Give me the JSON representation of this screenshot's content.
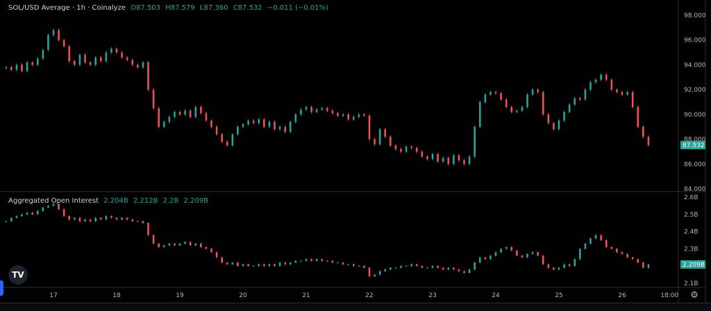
{
  "colors": {
    "up": "#26a69a",
    "down": "#ef5350",
    "background": "#000000",
    "grid": "#2a2e39",
    "text": "#d1d4dc"
  },
  "price_legend": {
    "title": "SOL/USD Average · 1h · Coinalyze",
    "o": "O87.503",
    "h": "H87.579",
    "l": "L87.360",
    "c": "C87.532",
    "change": "−0.011 (−0.01%)"
  },
  "oi_legend": {
    "title": "Aggregated Open Interest",
    "v1": "2.204B",
    "v2": "2.212B",
    "v3": "2.2B",
    "v4": "2.209B"
  },
  "logo_text": "TV",
  "icons": {
    "settings": "gear-icon",
    "logo": "tradingview-logo"
  },
  "chart_data": [
    {
      "type": "candlestick",
      "title": "SOL/USD Average · 1h · Coinalyze",
      "interval": "2h samples",
      "first_sample": "16 06:00",
      "ylim": [
        84,
        98
      ],
      "y_ticks": [
        "98.000",
        "96.000",
        "94.000",
        "92.000",
        "90.000",
        "88.000",
        "86.000",
        "84.000"
      ],
      "last_value_label": "87.532",
      "closes": [
        93.8,
        93.6,
        94.0,
        93.5,
        94.2,
        94.0,
        94.5,
        95.2,
        96.4,
        96.8,
        96.0,
        95.5,
        94.3,
        94.0,
        94.8,
        94.2,
        94.0,
        94.6,
        94.3,
        95.0,
        95.3,
        95.0,
        94.6,
        94.4,
        94.0,
        93.8,
        94.2,
        92.0,
        90.5,
        89.0,
        89.4,
        89.8,
        90.2,
        90.0,
        90.3,
        89.8,
        90.6,
        90.1,
        89.5,
        89.0,
        88.4,
        87.8,
        87.5,
        88.4,
        89.0,
        89.2,
        89.5,
        89.3,
        89.6,
        89.0,
        89.4,
        88.8,
        89.0,
        88.6,
        89.4,
        90.0,
        90.4,
        90.6,
        90.2,
        90.4,
        90.5,
        90.3,
        90.1,
        89.9,
        90.0,
        89.6,
        89.8,
        90.0,
        89.9,
        88.0,
        87.6,
        88.8,
        88.2,
        87.5,
        87.2,
        87.0,
        87.4,
        87.3,
        87.0,
        86.6,
        86.4,
        86.8,
        86.2,
        86.5,
        86.0,
        86.7,
        86.3,
        86.0,
        86.6,
        89.0,
        91.0,
        91.6,
        91.8,
        91.7,
        91.2,
        90.6,
        90.2,
        90.3,
        90.6,
        91.6,
        92.0,
        91.8,
        90.0,
        89.3,
        88.8,
        89.5,
        90.2,
        90.8,
        91.3,
        91.2,
        92.0,
        92.6,
        92.8,
        93.2,
        92.8,
        92.0,
        91.8,
        91.6,
        91.8,
        90.6,
        89.0,
        88.2,
        87.532
      ]
    },
    {
      "type": "candlestick",
      "title": "Aggregated Open Interest",
      "unit": "B",
      "ylim": [
        2.1,
        2.6
      ],
      "y_ticks": [
        "2.6B",
        "2.5B",
        "2.4B",
        "2.3B",
        "2.1B"
      ],
      "last_value_label": "2.209B",
      "closes": [
        2.46,
        2.48,
        2.49,
        2.5,
        2.51,
        2.5,
        2.52,
        2.54,
        2.55,
        2.56,
        2.53,
        2.49,
        2.47,
        2.48,
        2.46,
        2.47,
        2.46,
        2.48,
        2.47,
        2.49,
        2.48,
        2.47,
        2.48,
        2.47,
        2.46,
        2.46,
        2.45,
        2.38,
        2.33,
        2.31,
        2.32,
        2.33,
        2.32,
        2.33,
        2.34,
        2.32,
        2.33,
        2.31,
        2.3,
        2.28,
        2.25,
        2.22,
        2.21,
        2.22,
        2.2,
        2.21,
        2.2,
        2.2,
        2.21,
        2.2,
        2.21,
        2.2,
        2.22,
        2.21,
        2.22,
        2.23,
        2.23,
        2.24,
        2.23,
        2.24,
        2.23,
        2.23,
        2.22,
        2.22,
        2.21,
        2.21,
        2.2,
        2.2,
        2.19,
        2.14,
        2.15,
        2.17,
        2.18,
        2.19,
        2.19,
        2.2,
        2.2,
        2.21,
        2.2,
        2.19,
        2.19,
        2.2,
        2.19,
        2.18,
        2.19,
        2.18,
        2.17,
        2.16,
        2.18,
        2.22,
        2.25,
        2.24,
        2.26,
        2.28,
        2.3,
        2.31,
        2.29,
        2.26,
        2.25,
        2.27,
        2.28,
        2.26,
        2.21,
        2.19,
        2.18,
        2.19,
        2.21,
        2.2,
        2.24,
        2.3,
        2.33,
        2.36,
        2.38,
        2.35,
        2.31,
        2.3,
        2.28,
        2.27,
        2.25,
        2.24,
        2.22,
        2.19,
        2.209
      ]
    }
  ],
  "x_ticks": [
    "17",
    "18",
    "19",
    "20",
    "21",
    "22",
    "23",
    "24",
    "25",
    "26",
    "18:00"
  ]
}
